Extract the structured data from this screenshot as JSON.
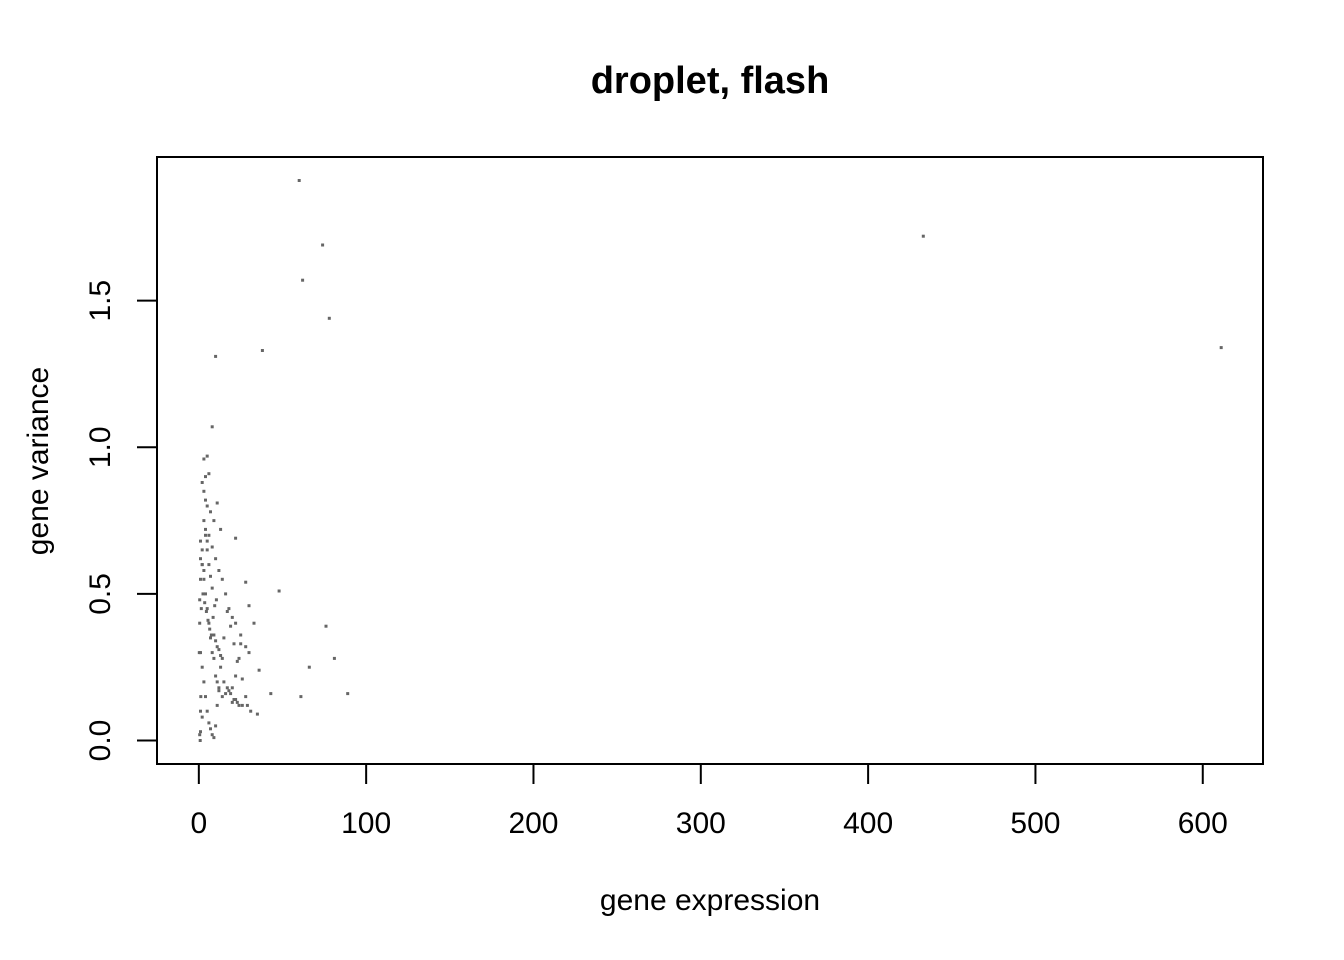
{
  "chart_data": {
    "type": "scatter",
    "title": "droplet, flash",
    "xlabel": "gene expression",
    "ylabel": "gene variance",
    "xlim": [
      -25,
      636
    ],
    "ylim": [
      -0.08,
      1.99
    ],
    "xticks": [
      0,
      100,
      200,
      300,
      400,
      500,
      600
    ],
    "xtick_labels": [
      "0",
      "100",
      "200",
      "300",
      "400",
      "500",
      "600"
    ],
    "yticks": [
      0.0,
      0.5,
      1.0,
      1.5
    ],
    "ytick_labels": [
      "0.0",
      "0.5",
      "1.0",
      "1.5"
    ],
    "grid": false,
    "point_color": "#666666",
    "series": [
      {
        "x": [
          60,
          74,
          62,
          78,
          433,
          611,
          38,
          10,
          8,
          5,
          6,
          3,
          4,
          2,
          3,
          4,
          5,
          7,
          9,
          11,
          13,
          22,
          6,
          8,
          10,
          12,
          14,
          16,
          18,
          20,
          22,
          25,
          28,
          30,
          33,
          36,
          43,
          48,
          61,
          66,
          76,
          81,
          89,
          28,
          30,
          25,
          24,
          22,
          20,
          18,
          16,
          14,
          12,
          11,
          10,
          9,
          8,
          7,
          6,
          5,
          4,
          3,
          2,
          2,
          1,
          1,
          1,
          0.5,
          0.5,
          0.3,
          3,
          4,
          5,
          6,
          7,
          8,
          9,
          10,
          11,
          12,
          13,
          15,
          17,
          19,
          21,
          23,
          26,
          29,
          31,
          35,
          15,
          17,
          19,
          21,
          23,
          9,
          10,
          11,
          12,
          13,
          14,
          5,
          6,
          7,
          8,
          4,
          5,
          3,
          4,
          2,
          3,
          1,
          2,
          1,
          2,
          0.5,
          1,
          0.8,
          1.2,
          1.5,
          2.5,
          3.5,
          4.5,
          5.5,
          6.5,
          7.5,
          8.5,
          9.5,
          10.5,
          20,
          22,
          24,
          26,
          28
        ],
        "y": [
          1.91,
          1.69,
          1.57,
          1.44,
          1.72,
          1.34,
          1.33,
          1.31,
          1.07,
          0.97,
          0.91,
          0.96,
          0.9,
          0.88,
          0.85,
          0.82,
          0.8,
          0.78,
          0.75,
          0.81,
          0.72,
          0.69,
          0.7,
          0.66,
          0.62,
          0.58,
          0.55,
          0.5,
          0.45,
          0.42,
          0.4,
          0.36,
          0.32,
          0.3,
          0.4,
          0.24,
          0.16,
          0.51,
          0.15,
          0.25,
          0.39,
          0.28,
          0.16,
          0.54,
          0.46,
          0.33,
          0.28,
          0.22,
          0.18,
          0.17,
          0.16,
          0.15,
          0.17,
          0.2,
          0.22,
          0.28,
          0.3,
          0.35,
          0.4,
          0.45,
          0.5,
          0.55,
          0.6,
          0.65,
          0.68,
          0.62,
          0.55,
          0.48,
          0.4,
          0.3,
          0.2,
          0.15,
          0.1,
          0.06,
          0.04,
          0.02,
          0.01,
          0.05,
          0.12,
          0.18,
          0.25,
          0.35,
          0.44,
          0.39,
          0.33,
          0.27,
          0.21,
          0.12,
          0.1,
          0.09,
          0.2,
          0.18,
          0.16,
          0.14,
          0.13,
          0.36,
          0.34,
          0.32,
          0.31,
          0.29,
          0.28,
          0.65,
          0.6,
          0.56,
          0.52,
          0.72,
          0.68,
          0.75,
          0.7,
          0.6,
          0.58,
          0.3,
          0.25,
          0.1,
          0.08,
          0.02,
          0.03,
          0.0,
          0.15,
          0.45,
          0.5,
          0.47,
          0.44,
          0.41,
          0.38,
          0.36,
          0.42,
          0.46,
          0.48,
          0.13,
          0.14,
          0.12,
          0.12,
          0.15
        ]
      }
    ]
  }
}
